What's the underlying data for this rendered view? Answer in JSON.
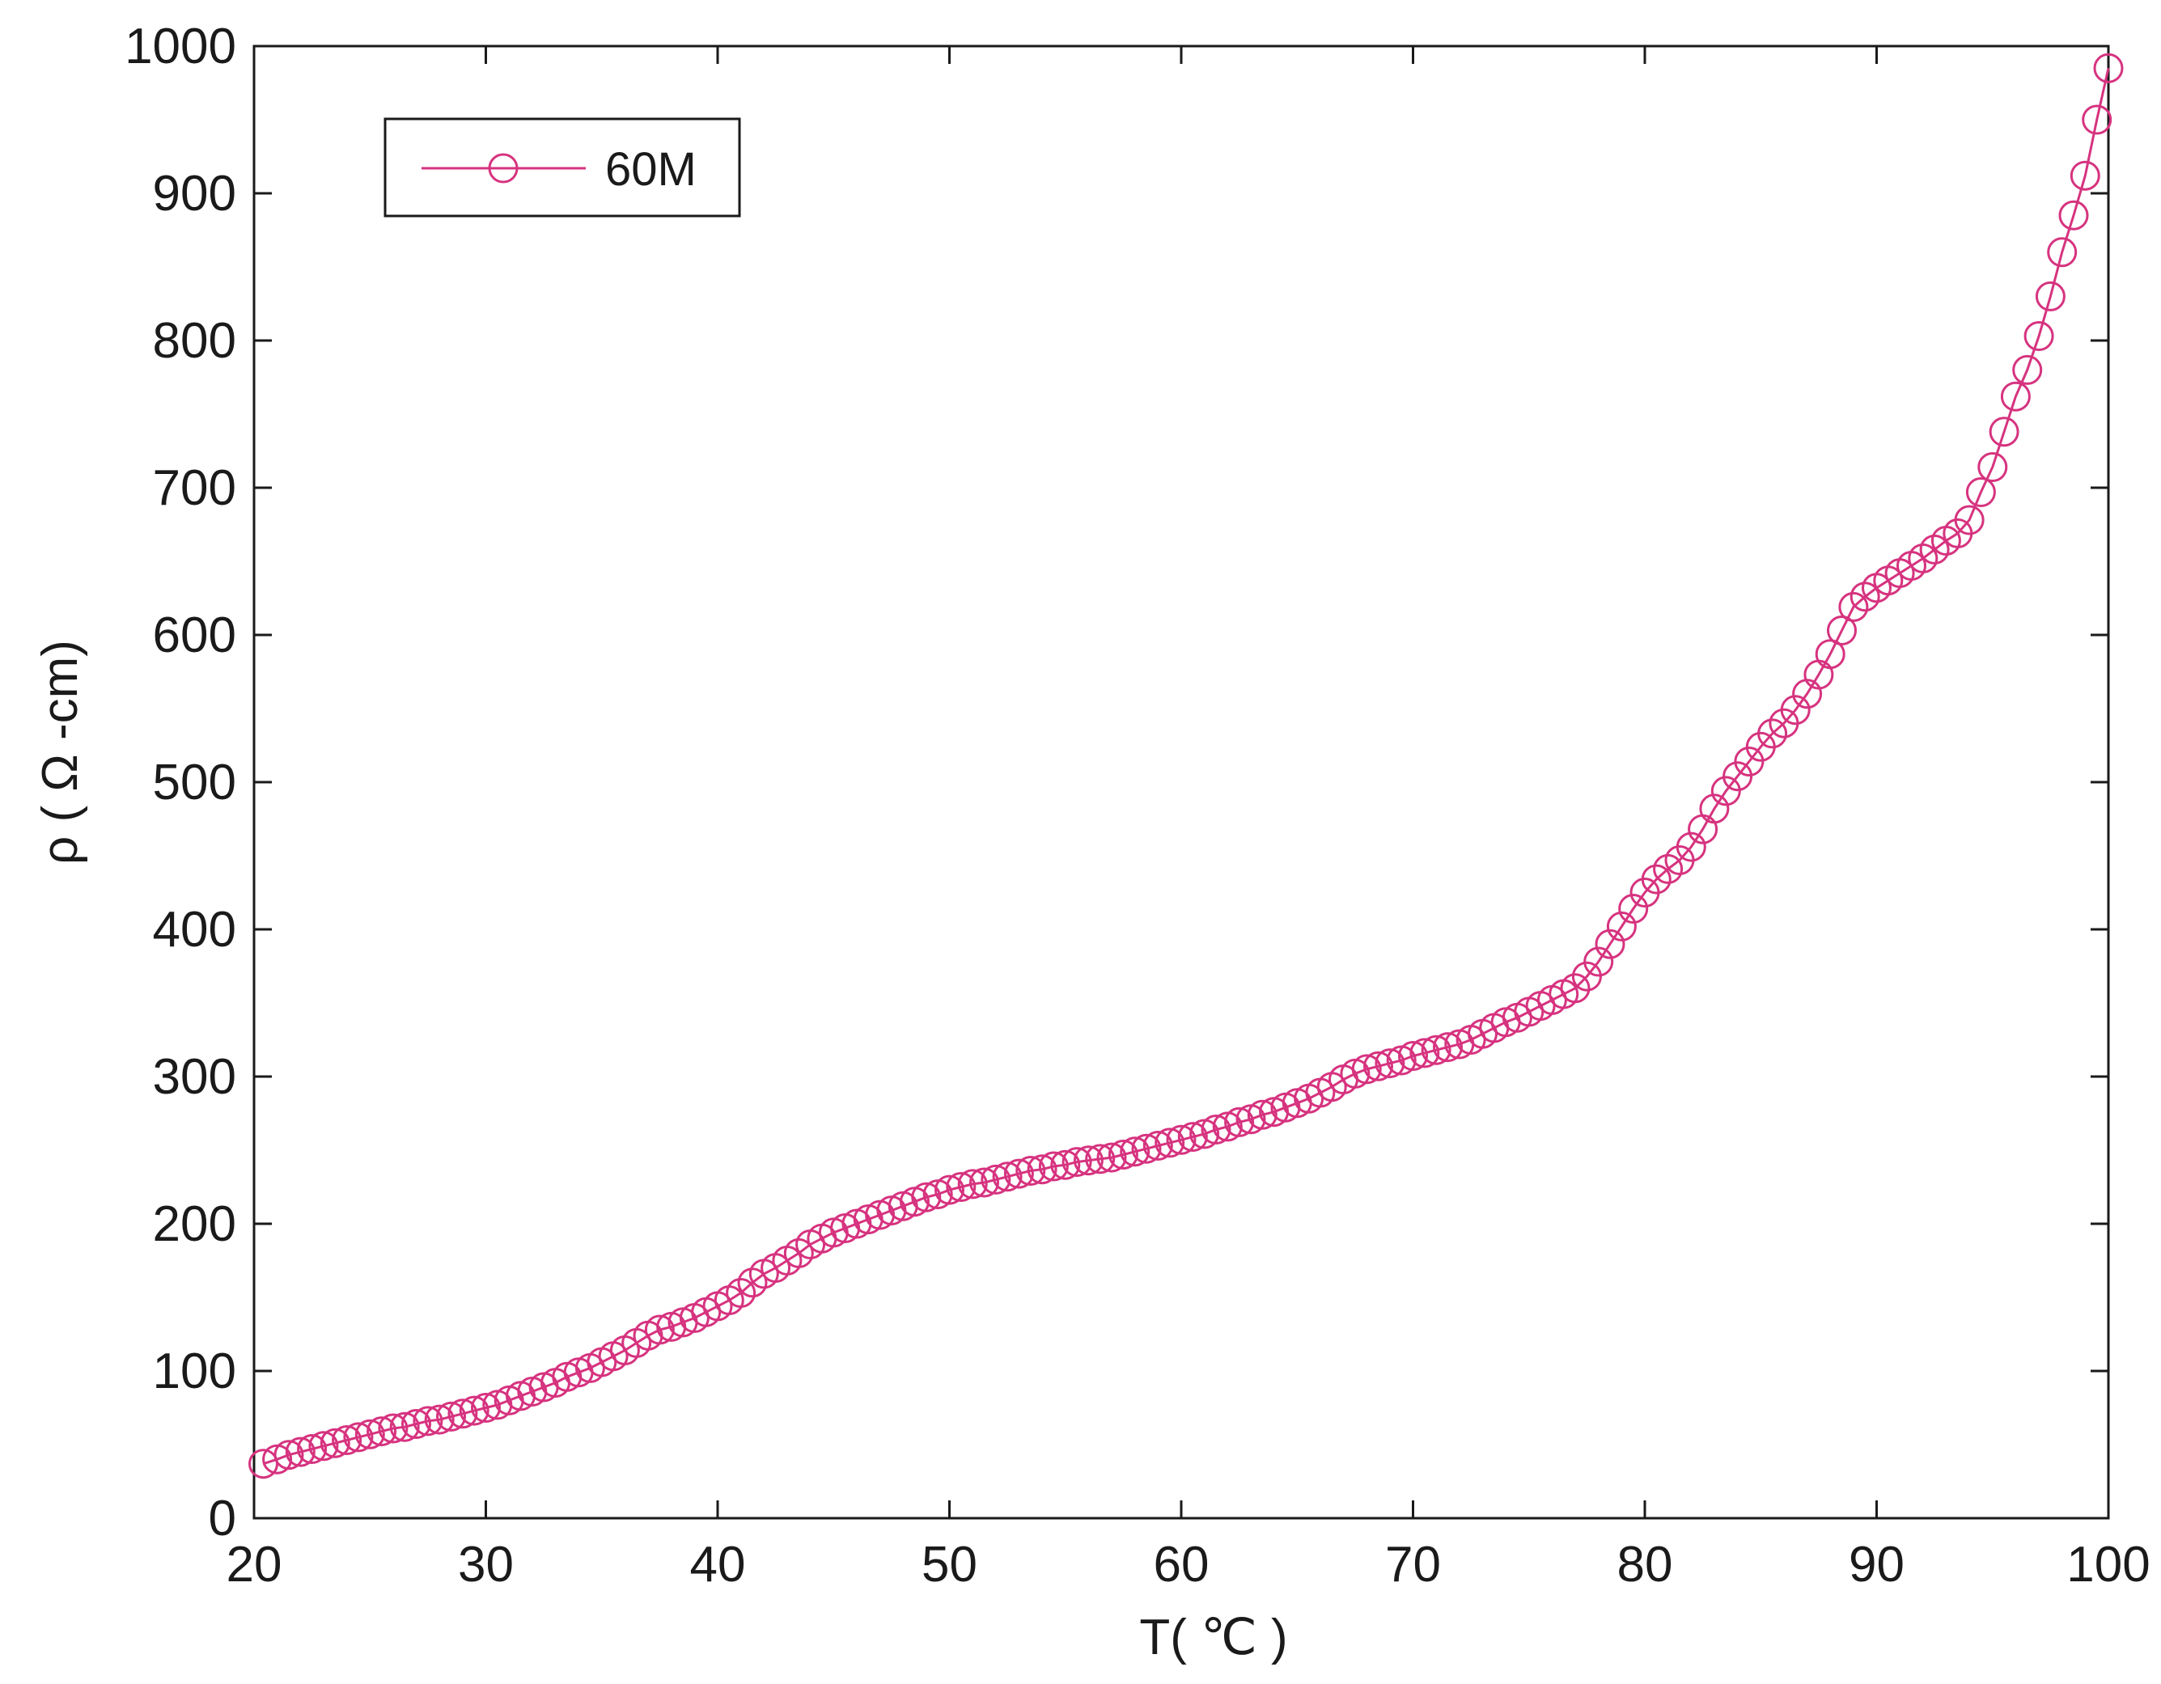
{
  "chart_data": {
    "type": "line",
    "title": "",
    "xlabel": "T( ℃ )",
    "ylabel": "ρ ( Ω -cm)",
    "xlim": [
      20,
      100
    ],
    "ylim": [
      0,
      1000
    ],
    "x_ticks": [
      "20",
      "30",
      "40",
      "50",
      "60",
      "70",
      "80",
      "90",
      "100"
    ],
    "y_ticks": [
      "0",
      "100",
      "200",
      "300",
      "400",
      "500",
      "600",
      "700",
      "800",
      "900",
      "1000"
    ],
    "grid": false,
    "legend_position": "top-left",
    "marker": "circle-open",
    "series_color": "#d6337f",
    "series": [
      {
        "name": "60M",
        "points": [
          [
            20.4,
            37
          ],
          [
            21.0,
            40
          ],
          [
            21.5,
            43
          ],
          [
            22.0,
            45
          ],
          [
            22.5,
            47
          ],
          [
            23.0,
            49
          ],
          [
            23.5,
            51
          ],
          [
            24.0,
            53
          ],
          [
            24.5,
            55
          ],
          [
            25.0,
            57
          ],
          [
            25.5,
            59
          ],
          [
            26.0,
            61
          ],
          [
            26.5,
            62
          ],
          [
            27.0,
            64
          ],
          [
            27.5,
            66
          ],
          [
            28.0,
            67
          ],
          [
            28.5,
            69
          ],
          [
            29.0,
            71
          ],
          [
            29.5,
            73
          ],
          [
            30.0,
            75
          ],
          [
            30.5,
            77
          ],
          [
            31.0,
            80
          ],
          [
            31.5,
            83
          ],
          [
            32.0,
            86
          ],
          [
            32.5,
            89
          ],
          [
            33.0,
            92
          ],
          [
            33.5,
            96
          ],
          [
            34.0,
            99
          ],
          [
            34.5,
            102
          ],
          [
            35.0,
            106
          ],
          [
            35.5,
            110
          ],
          [
            36.0,
            114
          ],
          [
            36.5,
            119
          ],
          [
            37.0,
            124
          ],
          [
            37.5,
            128
          ],
          [
            38.0,
            130
          ],
          [
            38.5,
            133
          ],
          [
            39.0,
            136
          ],
          [
            39.5,
            140
          ],
          [
            40.0,
            144
          ],
          [
            40.5,
            148
          ],
          [
            41.0,
            153
          ],
          [
            41.5,
            160
          ],
          [
            42.0,
            166
          ],
          [
            42.5,
            170
          ],
          [
            43.0,
            175
          ],
          [
            43.5,
            180
          ],
          [
            44.0,
            186
          ],
          [
            44.5,
            190
          ],
          [
            45.0,
            194
          ],
          [
            45.5,
            197
          ],
          [
            46.0,
            200
          ],
          [
            46.5,
            203
          ],
          [
            47.0,
            206
          ],
          [
            47.5,
            209
          ],
          [
            48.0,
            212
          ],
          [
            48.5,
            215
          ],
          [
            49.0,
            218
          ],
          [
            49.5,
            220
          ],
          [
            50.0,
            223
          ],
          [
            50.5,
            225
          ],
          [
            51.0,
            227
          ],
          [
            51.5,
            228
          ],
          [
            52.0,
            230
          ],
          [
            52.5,
            232
          ],
          [
            53.0,
            234
          ],
          [
            53.5,
            236
          ],
          [
            54.0,
            237
          ],
          [
            54.5,
            239
          ],
          [
            55.0,
            240
          ],
          [
            55.5,
            242
          ],
          [
            56.0,
            243
          ],
          [
            56.5,
            244
          ],
          [
            57.0,
            245
          ],
          [
            57.5,
            247
          ],
          [
            58.0,
            249
          ],
          [
            58.5,
            251
          ],
          [
            59.0,
            253
          ],
          [
            59.5,
            255
          ],
          [
            60.0,
            257
          ],
          [
            60.5,
            259
          ],
          [
            61.0,
            261
          ],
          [
            61.5,
            264
          ],
          [
            62.0,
            266
          ],
          [
            62.5,
            269
          ],
          [
            63.0,
            271
          ],
          [
            63.5,
            274
          ],
          [
            64.0,
            276
          ],
          [
            64.5,
            279
          ],
          [
            65.0,
            282
          ],
          [
            65.5,
            285
          ],
          [
            66.0,
            289
          ],
          [
            66.5,
            293
          ],
          [
            67.0,
            298
          ],
          [
            67.5,
            302
          ],
          [
            68.0,
            305
          ],
          [
            68.5,
            307
          ],
          [
            69.0,
            309
          ],
          [
            69.5,
            311
          ],
          [
            70.0,
            314
          ],
          [
            70.5,
            316
          ],
          [
            71.0,
            318
          ],
          [
            71.5,
            320
          ],
          [
            72.0,
            322
          ],
          [
            72.5,
            325
          ],
          [
            73.0,
            329
          ],
          [
            73.5,
            333
          ],
          [
            74.0,
            337
          ],
          [
            74.5,
            340
          ],
          [
            75.0,
            344
          ],
          [
            75.5,
            348
          ],
          [
            76.0,
            352
          ],
          [
            76.5,
            356
          ],
          [
            77.0,
            360
          ],
          [
            77.5,
            368
          ],
          [
            78.0,
            378
          ],
          [
            78.5,
            390
          ],
          [
            79.0,
            402
          ],
          [
            79.5,
            414
          ],
          [
            80.0,
            425
          ],
          [
            80.5,
            434
          ],
          [
            81.0,
            441
          ],
          [
            81.5,
            447
          ],
          [
            82.0,
            456
          ],
          [
            82.5,
            468
          ],
          [
            83.0,
            482
          ],
          [
            83.5,
            494
          ],
          [
            84.0,
            504
          ],
          [
            84.5,
            514
          ],
          [
            85.0,
            524
          ],
          [
            85.5,
            533
          ],
          [
            86.0,
            540
          ],
          [
            86.5,
            549
          ],
          [
            87.0,
            560
          ],
          [
            87.5,
            573
          ],
          [
            88.0,
            587
          ],
          [
            88.5,
            603
          ],
          [
            89.0,
            619
          ],
          [
            89.5,
            626
          ],
          [
            90.0,
            632
          ],
          [
            90.5,
            637
          ],
          [
            91.0,
            642
          ],
          [
            91.5,
            647
          ],
          [
            92.0,
            652
          ],
          [
            92.5,
            658
          ],
          [
            93.0,
            664
          ],
          [
            93.5,
            669
          ],
          [
            94.0,
            678
          ],
          [
            94.5,
            697
          ],
          [
            95.0,
            714
          ],
          [
            95.5,
            738
          ],
          [
            96.0,
            762
          ],
          [
            96.5,
            780
          ],
          [
            97.0,
            803
          ],
          [
            97.5,
            830
          ],
          [
            98.0,
            860
          ],
          [
            98.5,
            885
          ],
          [
            99.0,
            912
          ],
          [
            99.5,
            950
          ],
          [
            100.0,
            985
          ]
        ]
      }
    ]
  }
}
